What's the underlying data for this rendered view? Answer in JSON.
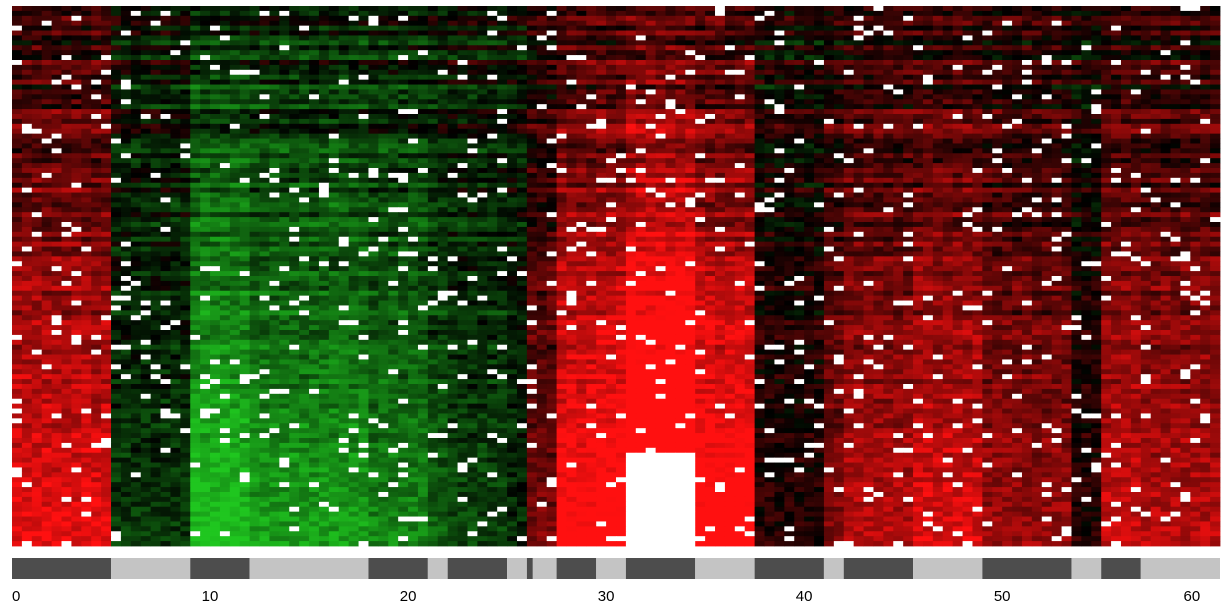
{
  "chart_data": {
    "type": "heatmap",
    "title": "",
    "xlabel": "",
    "ylabel": "",
    "color_scale": {
      "low": "#1fc61f",
      "mid": "#000000",
      "high": "#ff1010",
      "missing": "#ffffff"
    },
    "x_range": [
      0,
      61
    ],
    "x_ticks": [
      0,
      10,
      20,
      30,
      40,
      50,
      60
    ],
    "x_tick_labels": [
      "0",
      "10",
      "20",
      "30",
      "40",
      "50",
      "60"
    ],
    "column_count": 122,
    "row_count": 110,
    "column_segments": [
      {
        "start": 0,
        "end": 5,
        "shade": "dark"
      },
      {
        "start": 5,
        "end": 9,
        "shade": "light"
      },
      {
        "start": 9,
        "end": 12,
        "shade": "dark"
      },
      {
        "start": 12,
        "end": 18,
        "shade": "light"
      },
      {
        "start": 18,
        "end": 21,
        "shade": "dark"
      },
      {
        "start": 21,
        "end": 22,
        "shade": "light"
      },
      {
        "start": 22,
        "end": 25,
        "shade": "dark"
      },
      {
        "start": 25,
        "end": 26,
        "shade": "light"
      },
      {
        "start": 26,
        "end": 26.3,
        "shade": "dark"
      },
      {
        "start": 26.3,
        "end": 27.5,
        "shade": "light"
      },
      {
        "start": 27.5,
        "end": 29.5,
        "shade": "dark"
      },
      {
        "start": 29.5,
        "end": 31,
        "shade": "light"
      },
      {
        "start": 31,
        "end": 34.5,
        "shade": "dark"
      },
      {
        "start": 34.5,
        "end": 37.5,
        "shade": "light"
      },
      {
        "start": 37.5,
        "end": 41,
        "shade": "dark"
      },
      {
        "start": 41,
        "end": 42,
        "shade": "light"
      },
      {
        "start": 42,
        "end": 45.5,
        "shade": "dark"
      },
      {
        "start": 45.5,
        "end": 49,
        "shade": "light"
      },
      {
        "start": 49,
        "end": 53.5,
        "shade": "dark"
      },
      {
        "start": 53.5,
        "end": 55,
        "shade": "light"
      },
      {
        "start": 55,
        "end": 57,
        "shade": "dark"
      },
      {
        "start": 57,
        "end": 61,
        "shade": "light"
      }
    ],
    "column_profile": {
      "boundaries": [
        0,
        5,
        9,
        12,
        18,
        21,
        22,
        25,
        26,
        27.5,
        29.5,
        31,
        34.5,
        37.5,
        41,
        42,
        45.5,
        49,
        53.5,
        55,
        57,
        61
      ],
      "levels": [
        0.7,
        -0.2,
        -0.75,
        -0.6,
        -0.5,
        -0.35,
        -0.25,
        -0.15,
        0.35,
        0.85,
        0.9,
        1.2,
        0.9,
        0.1,
        0.4,
        0.55,
        0.65,
        0.45,
        0.1,
        0.6,
        0.55,
        0.8
      ]
    }
  }
}
